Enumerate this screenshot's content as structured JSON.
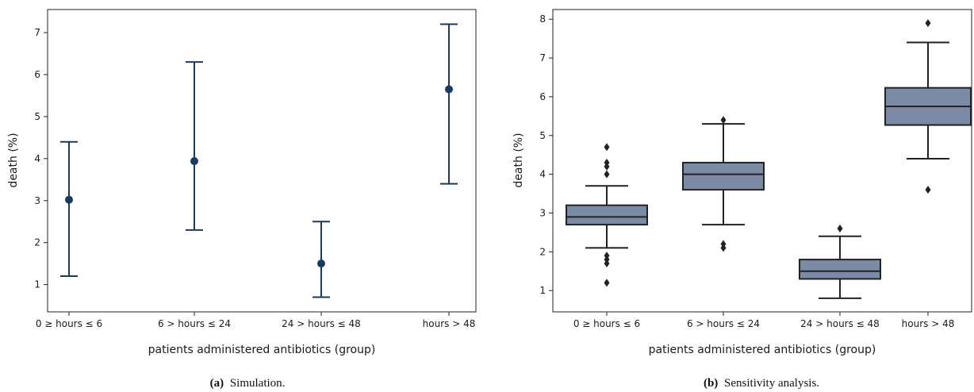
{
  "colors": {
    "errorbar": "#1b3a5c",
    "box_fill": "#7b8ba6",
    "box_edge": "#222222",
    "outlier": "#222222"
  },
  "chart_data": [
    {
      "type": "errorbar",
      "panel": "a",
      "caption_prefix": "(a)",
      "caption_text": "Simulation.",
      "xlabel": "patients administered antibiotics (group)",
      "ylabel": "death (%)",
      "categories": [
        "0 ≥ hours ≤ 6",
        "6 > hours  ≤ 24",
        "24 > hours  ≤ 48",
        "hours > 48"
      ],
      "ylim": [
        0.35,
        7.55
      ],
      "yticks": [
        1,
        2,
        3,
        4,
        5,
        6,
        7
      ],
      "points": [
        {
          "mean": 3.02,
          "low": 1.2,
          "high": 4.4
        },
        {
          "mean": 3.94,
          "low": 2.3,
          "high": 6.3
        },
        {
          "mean": 1.5,
          "low": 0.7,
          "high": 2.5
        },
        {
          "mean": 5.65,
          "low": 3.4,
          "high": 7.2
        }
      ],
      "grid": false
    },
    {
      "type": "box",
      "panel": "b",
      "caption_prefix": "(b)",
      "caption_text": "Sensitivity analysis.",
      "xlabel": "patients administered antibiotics (group)",
      "ylabel": "death (%)",
      "categories": [
        "0 ≥ hours ≤ 6",
        "6 > hours  ≤ 24",
        "24 > hours  ≤ 48",
        "hours > 48"
      ],
      "ylim": [
        0.45,
        8.25
      ],
      "yticks": [
        1,
        2,
        3,
        4,
        5,
        6,
        7,
        8
      ],
      "boxes": [
        {
          "whislo": 2.1,
          "q1": 2.7,
          "med": 2.9,
          "q3": 3.2,
          "whishi": 3.7,
          "fliers": [
            1.2,
            1.7,
            1.8,
            1.9,
            4.0,
            4.2,
            4.3,
            4.7
          ]
        },
        {
          "whislo": 2.7,
          "q1": 3.6,
          "med": 4.0,
          "q3": 4.3,
          "whishi": 5.3,
          "fliers": [
            2.1,
            2.2,
            5.4
          ]
        },
        {
          "whislo": 0.8,
          "q1": 1.3,
          "med": 1.5,
          "q3": 1.8,
          "whishi": 2.4,
          "fliers": [
            2.6
          ]
        },
        {
          "whislo": 4.4,
          "q1": 5.27,
          "med": 5.75,
          "q3": 6.23,
          "whishi": 7.4,
          "fliers": [
            3.6,
            7.9
          ]
        }
      ],
      "grid": false
    }
  ]
}
